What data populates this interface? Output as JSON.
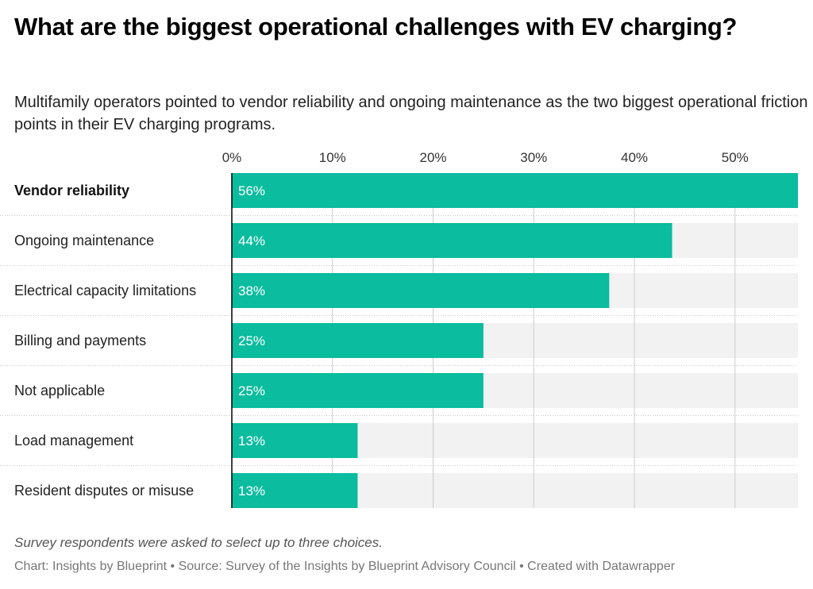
{
  "header": {
    "title": "What are the biggest operational challenges with EV charging?",
    "subtitle": "Multifamily operators pointed to vendor reliability and ongoing maintenance as the two biggest operational friction points in their EV charging programs."
  },
  "footer": {
    "note": "Survey respondents were asked to select up to three choices.",
    "byline": "Chart: Insights by Blueprint • Source: Survey of the Insights by Blueprint Advisory Council • Created with Datawrapper"
  },
  "colors": {
    "bar": "#0bbc9f",
    "track": "#f2f2f2",
    "grid": "#cccccc",
    "axis": "#000000"
  },
  "chart_data": {
    "type": "bar",
    "orientation": "horizontal",
    "title": "What are the biggest operational challenges with EV charging?",
    "xlabel": "",
    "ylabel": "",
    "xlim": [
      0,
      56.25
    ],
    "ticks": [
      0,
      10,
      20,
      30,
      40,
      50
    ],
    "tick_labels": [
      "0%",
      "10%",
      "20%",
      "30%",
      "40%",
      "50%"
    ],
    "grid": true,
    "categories": [
      "Vendor reliability",
      "Ongoing maintenance",
      "Electrical capacity limitations",
      "Billing and payments",
      "Not applicable",
      "Load management",
      "Resident disputes or misuse"
    ],
    "values": [
      56.25,
      43.75,
      37.5,
      25,
      25,
      12.5,
      12.5
    ],
    "value_labels": [
      "56%",
      "44%",
      "38%",
      "25%",
      "25%",
      "13%",
      "13%"
    ],
    "highlighted": [
      0
    ]
  }
}
